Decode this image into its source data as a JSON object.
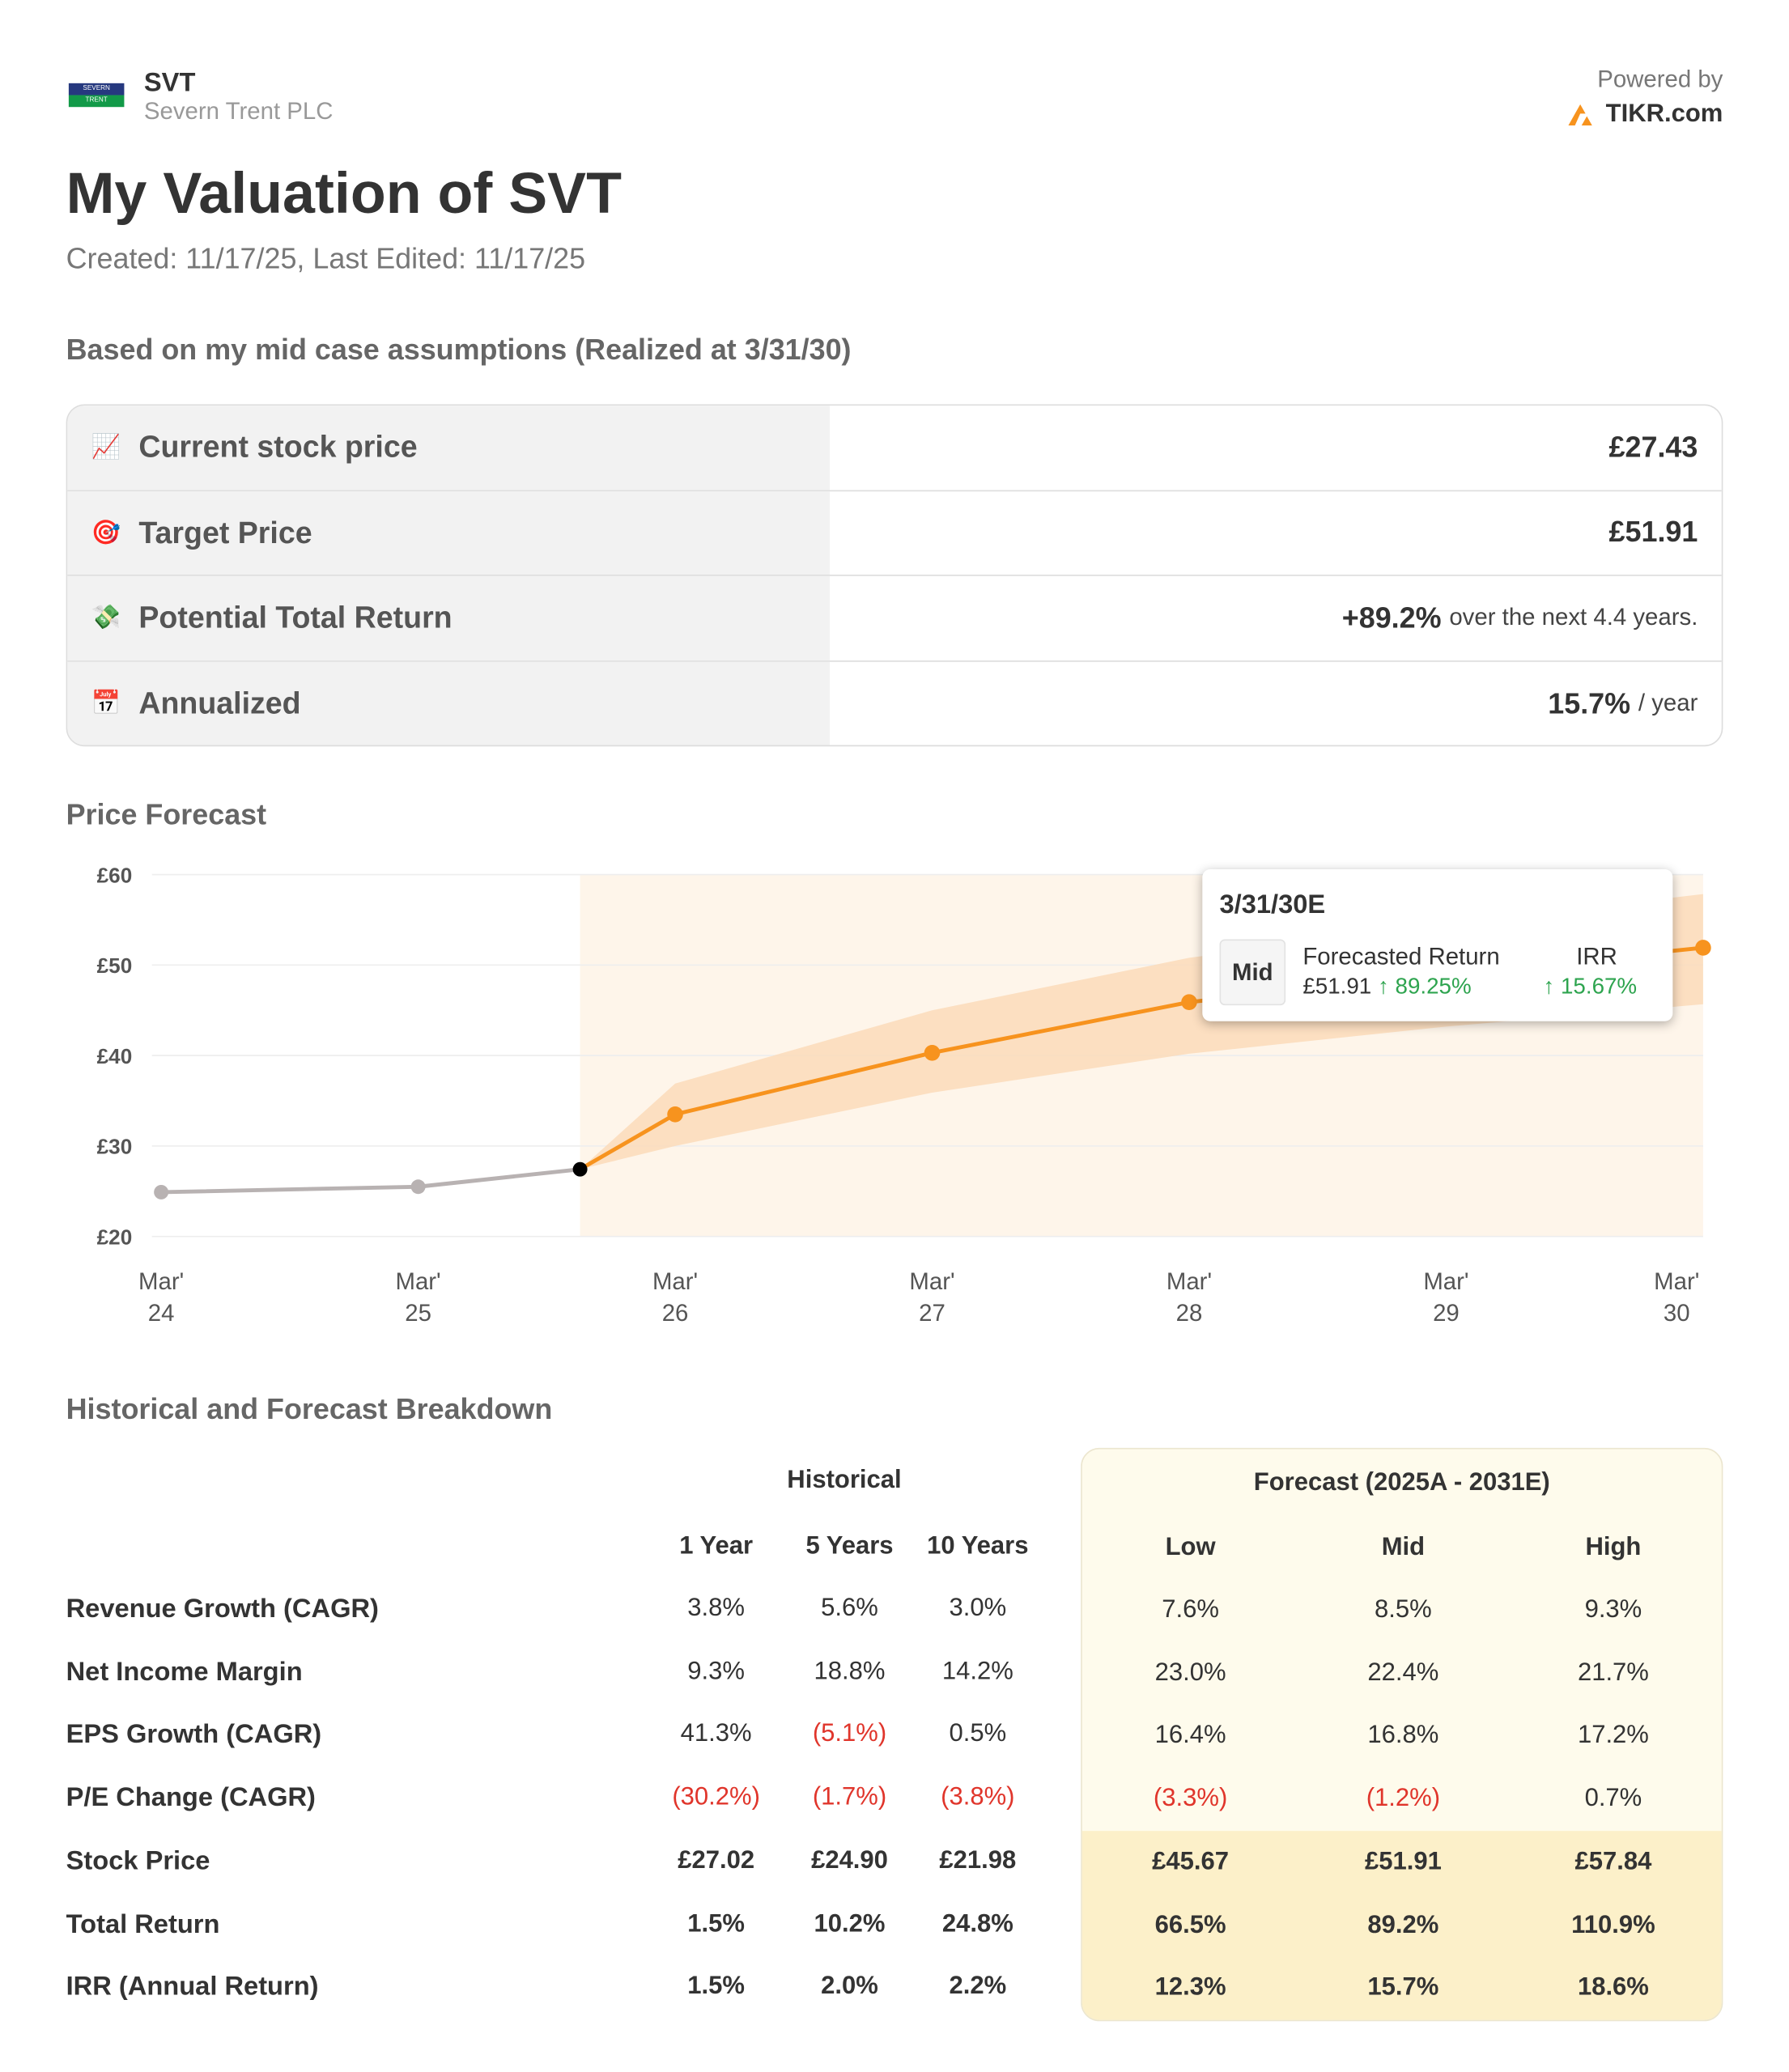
{
  "header": {
    "ticker": "SVT",
    "company": "Severn Trent PLC",
    "logo_top": "SEVERN",
    "logo_bottom": "TRENT",
    "powered_by": "Powered by",
    "brand": "TIKR.com"
  },
  "title": "My Valuation of SVT",
  "dates": "Created: 11/17/25, Last Edited: 11/17/25",
  "assumption_heading": "Based on my mid case assumptions (Realized at 3/31/30)",
  "summary": [
    {
      "icon": "chart-icon",
      "glyph": "📈",
      "label": "Current stock price",
      "value": "£27.43",
      "suffix": ""
    },
    {
      "icon": "target-icon",
      "glyph": "🎯",
      "label": "Target Price",
      "value": "£51.91",
      "suffix": ""
    },
    {
      "icon": "money-icon",
      "glyph": "💸",
      "label": "Potential Total Return",
      "value": "+89.2%",
      "suffix": "over the next 4.4 years."
    },
    {
      "icon": "calendar-icon",
      "glyph": "📅",
      "label": "Annualized",
      "value": "15.7%",
      "suffix": "/ year"
    }
  ],
  "forecast_heading": "Price Forecast",
  "tooltip": {
    "date": "3/31/30E",
    "case": "Mid",
    "ret_label": "Forecasted Return",
    "price": "£51.91",
    "ret": "↑ 89.25%",
    "irr_label": "IRR",
    "irr": "↑ 15.67%"
  },
  "chart_data": {
    "type": "line",
    "title": "Price Forecast",
    "ylim": [
      20,
      60
    ],
    "y_ticks": [
      "£20",
      "£30",
      "£40",
      "£50",
      "£60"
    ],
    "y_tick_values": [
      20,
      30,
      40,
      50,
      60
    ],
    "x_ticks": [
      {
        "l1": "Mar'",
        "l2": "24",
        "x": 0
      },
      {
        "l1": "Mar'",
        "l2": "25",
        "x": 1
      },
      {
        "l1": "Mar'",
        "l2": "26",
        "x": 2
      },
      {
        "l1": "Mar'",
        "l2": "27",
        "x": 3
      },
      {
        "l1": "Mar'",
        "l2": "28",
        "x": 4
      },
      {
        "l1": "Mar'",
        "l2": "29",
        "x": 5
      },
      {
        "l1": "Mar'",
        "l2": "30",
        "x": 6
      }
    ],
    "historical": [
      {
        "x": 0,
        "y": 24.9
      },
      {
        "x": 1,
        "y": 25.5
      },
      {
        "x": 1.63,
        "y": 27.43
      }
    ],
    "mid": [
      {
        "x": 1.63,
        "y": 27.43
      },
      {
        "x": 2,
        "y": 33.5
      },
      {
        "x": 3,
        "y": 40.3
      },
      {
        "x": 4,
        "y": 45.9
      },
      {
        "x": 5,
        "y": 49.0
      },
      {
        "x": 6,
        "y": 51.91
      }
    ],
    "low": [
      {
        "x": 1.63,
        "y": 27.43
      },
      {
        "x": 2,
        "y": 30.0
      },
      {
        "x": 3,
        "y": 35.9
      },
      {
        "x": 4,
        "y": 40.2
      },
      {
        "x": 5,
        "y": 43.2
      },
      {
        "x": 6,
        "y": 45.67
      }
    ],
    "high": [
      {
        "x": 1.63,
        "y": 27.43
      },
      {
        "x": 2,
        "y": 36.9
      },
      {
        "x": 3,
        "y": 45.0
      },
      {
        "x": 4,
        "y": 50.8
      },
      {
        "x": 5,
        "y": 54.5
      },
      {
        "x": 6,
        "y": 57.84
      }
    ],
    "colors": {
      "historical": "#b8b2b2",
      "mid": "#f7931e",
      "band": "#fbd9b6",
      "shade": "#fef5ea"
    }
  },
  "breakdown": {
    "heading": "Historical and Forecast Breakdown",
    "hist_title": "Historical",
    "fc_title": "Forecast (2025A - 2031E)",
    "hist_cols": [
      "1 Year",
      "5 Years",
      "10 Years"
    ],
    "fc_cols": [
      "Low",
      "Mid",
      "High"
    ],
    "rows": [
      {
        "label": "Revenue Growth (CAGR)",
        "hist": [
          "3.8%",
          "5.6%",
          "3.0%"
        ],
        "fc": [
          "7.6%",
          "8.5%",
          "9.3%"
        ]
      },
      {
        "label": "Net Income Margin",
        "hist": [
          "9.3%",
          "18.8%",
          "14.2%"
        ],
        "fc": [
          "23.0%",
          "22.4%",
          "21.7%"
        ]
      },
      {
        "label": "EPS Growth (CAGR)",
        "hist": [
          "41.3%",
          "(5.1%)",
          "0.5%"
        ],
        "fc": [
          "16.4%",
          "16.8%",
          "17.2%"
        ]
      },
      {
        "label": "P/E Change (CAGR)",
        "hist": [
          "(30.2%)",
          "(1.7%)",
          "(3.8%)"
        ],
        "fc": [
          "(3.3%)",
          "(1.2%)",
          "0.7%"
        ]
      },
      {
        "label": "Stock Price",
        "hist": [
          "£27.02",
          "£24.90",
          "£21.98"
        ],
        "fc": [
          "£45.67",
          "£51.91",
          "£57.84"
        ]
      },
      {
        "label": "Total Return",
        "hist": [
          "1.5%",
          "10.2%",
          "24.8%"
        ],
        "fc": [
          "66.5%",
          "89.2%",
          "110.9%"
        ]
      },
      {
        "label": "IRR (Annual Return)",
        "hist": [
          "1.5%",
          "2.0%",
          "2.2%"
        ],
        "fc": [
          "12.3%",
          "15.7%",
          "18.6%"
        ]
      }
    ]
  }
}
